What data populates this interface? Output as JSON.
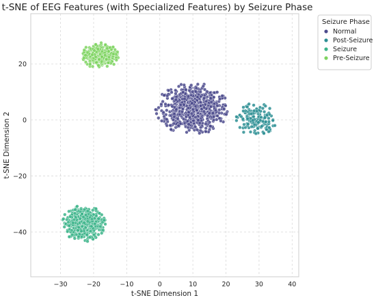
{
  "chart_data": {
    "type": "scatter",
    "title": "t-SNE of EEG Features (with Specialized Features) by Seizure Phase",
    "xlabel": "t-SNE Dimension 1",
    "ylabel": "t-SNE Dimension 2",
    "xlim": [
      -39,
      42
    ],
    "ylim": [
      -56,
      38
    ],
    "xticks": [
      -30,
      -20,
      -10,
      0,
      10,
      20,
      30,
      40
    ],
    "yticks": [
      -40,
      -20,
      0,
      20
    ],
    "grid": true,
    "legend": {
      "title": "Seizure Phase",
      "placement": "outside-right"
    },
    "series": [
      {
        "name": "Normal",
        "color": "#4b4a8c",
        "cluster": {
          "center": [
            10,
            4
          ],
          "spread": [
            11,
            9
          ],
          "count": 650
        }
      },
      {
        "name": "Post-Seizure",
        "color": "#2c8e93",
        "cluster": {
          "center": [
            29,
            0
          ],
          "spread": [
            6,
            6
          ],
          "count": 160
        }
      },
      {
        "name": "Seizure",
        "color": "#3cb48a",
        "cluster": {
          "center": [
            -23,
            -37
          ],
          "spread": [
            6.5,
            6.5
          ],
          "count": 430
        }
      },
      {
        "name": "Pre-Seizure",
        "color": "#7ed360",
        "cluster": {
          "center": [
            -18,
            23
          ],
          "spread": [
            5.5,
            4.5
          ],
          "count": 330
        }
      }
    ]
  }
}
